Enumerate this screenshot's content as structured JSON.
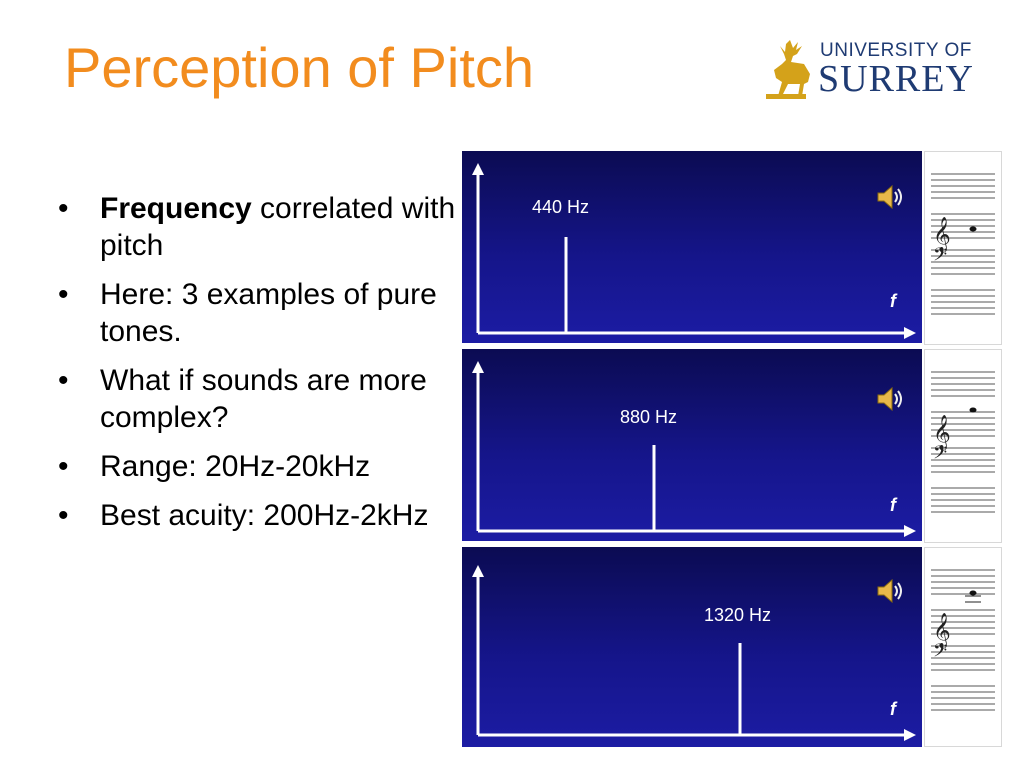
{
  "slide": {
    "title": "Perception of Pitch",
    "logo": {
      "line1": "UNIVERSITY OF",
      "line2": "SURREY"
    }
  },
  "bullets": [
    {
      "bold": "Frequency",
      "text": " correlated with pitch"
    },
    {
      "bold": "",
      "text": "Here: 3 examples of pure tones."
    },
    {
      "bold": "",
      "text": "What if sounds are more complex?"
    },
    {
      "bold": "",
      "text": "Range: 20Hz-20kHz"
    },
    {
      "bold": "",
      "text": "Best acuity: 200Hz-2kHz"
    }
  ],
  "spectra": [
    {
      "label": "440 Hz",
      "axis_label": "f",
      "icon": "speaker-icon"
    },
    {
      "label": "880 Hz",
      "axis_label": "f",
      "icon": "speaker-icon"
    },
    {
      "label": "1320 Hz",
      "axis_label": "f",
      "icon": "speaker-icon"
    }
  ],
  "colors": {
    "title": "#f28c1e",
    "panel_top": "#0b0b52",
    "panel_bottom": "#1c1ca4",
    "logo": "#1f3b73",
    "stag": "#d4a21a"
  }
}
